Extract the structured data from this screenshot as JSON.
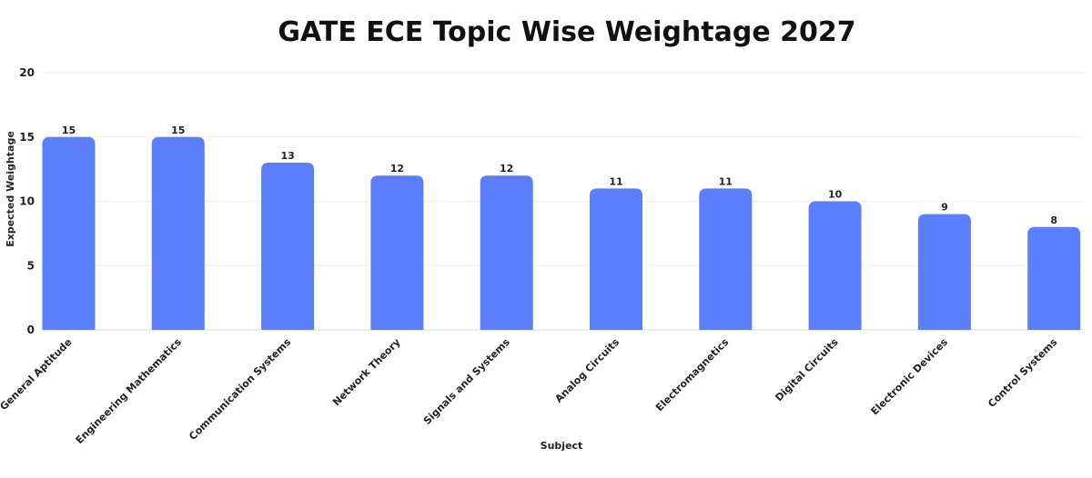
{
  "chart_data": {
    "type": "bar",
    "title": "GATE ECE Topic Wise Weightage 2027",
    "xlabel": "Subject",
    "ylabel": "Expected Weightage",
    "ylim": [
      0,
      20
    ],
    "yticks": [
      0,
      5,
      10,
      15,
      20
    ],
    "grid": true,
    "bar_color": "#5b7ffc",
    "categories": [
      "General Aptitude",
      "Engineering Mathematics",
      "Communication Systems",
      "Network Theory",
      "Signals and Systems",
      "Analog Circuits",
      "Electromagnetics",
      "Digital Circuits",
      "Electronic Devices",
      "Control Systems"
    ],
    "values": [
      15,
      15,
      13,
      12,
      12,
      11,
      11,
      10,
      9,
      8
    ],
    "data_labels": [
      "15",
      "15",
      "13",
      "12",
      "12",
      "11",
      "11",
      "10",
      "9",
      "8"
    ]
  }
}
